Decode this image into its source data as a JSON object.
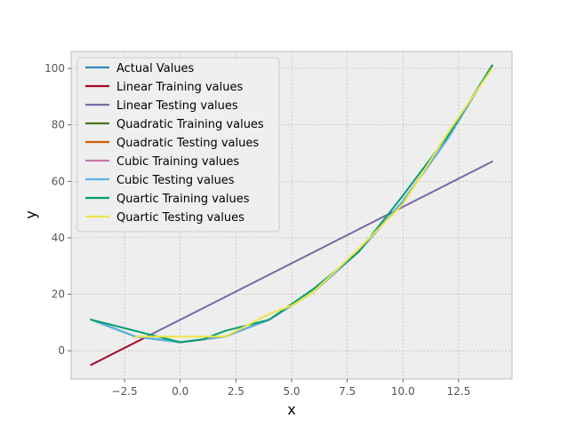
{
  "chart_data": {
    "type": "line",
    "title": "",
    "xlabel": "x",
    "ylabel": "y",
    "xlim": [
      -4.9,
      14.9
    ],
    "ylim": [
      -10,
      106
    ],
    "x_ticks": [
      -2.5,
      0.0,
      2.5,
      5.0,
      7.5,
      10.0,
      12.5
    ],
    "x_tick_labels": [
      "−2.5",
      "0.0",
      "2.5",
      "5.0",
      "7.5",
      "10.0",
      "12.5"
    ],
    "y_ticks": [
      0,
      20,
      40,
      60,
      80,
      100
    ],
    "y_tick_labels": [
      "0",
      "20",
      "40",
      "60",
      "80",
      "100"
    ],
    "grid": true,
    "legend_position": "top-left",
    "background": "#eeeeee",
    "series": [
      {
        "name": "Actual Values",
        "color": "#348abd",
        "points": [
          [
            -4,
            11
          ],
          [
            -2,
            5
          ],
          [
            0,
            3
          ],
          [
            2,
            5
          ],
          [
            4,
            11
          ],
          [
            6,
            21
          ],
          [
            8,
            35
          ],
          [
            10,
            53
          ],
          [
            12,
            75
          ],
          [
            14,
            101
          ]
        ]
      },
      {
        "name": "Linear Training values",
        "color": "#a60628",
        "points": [
          [
            -4,
            -5
          ],
          [
            -1.5,
            5
          ]
        ]
      },
      {
        "name": "Linear Testing values",
        "color": "#7a68a6",
        "points": [
          [
            -1.5,
            5
          ],
          [
            14,
            67
          ]
        ]
      },
      {
        "name": "Quadratic Training values",
        "color": "#467821",
        "points": [
          [
            -4,
            11
          ],
          [
            -2,
            5
          ],
          [
            0,
            3
          ],
          [
            2,
            5
          ],
          [
            4,
            11
          ],
          [
            6,
            21
          ],
          [
            8,
            35
          ],
          [
            10,
            53
          ],
          [
            12,
            75
          ],
          [
            14,
            101
          ]
        ]
      },
      {
        "name": "Quadratic Testing values",
        "color": "#d55e00",
        "points": [
          [
            -4,
            11
          ],
          [
            -2,
            5
          ],
          [
            0,
            3
          ],
          [
            2,
            5
          ],
          [
            4,
            11
          ],
          [
            6,
            21
          ],
          [
            8,
            35
          ],
          [
            10,
            53
          ],
          [
            12,
            75
          ],
          [
            14,
            101
          ]
        ]
      },
      {
        "name": "Cubic Training values",
        "color": "#cc79a7",
        "points": [
          [
            -4,
            11
          ],
          [
            -2,
            5
          ],
          [
            0,
            3
          ],
          [
            2,
            5
          ],
          [
            4,
            11
          ],
          [
            6,
            21
          ],
          [
            8,
            35
          ],
          [
            10,
            53
          ],
          [
            12,
            75
          ],
          [
            14,
            101
          ]
        ]
      },
      {
        "name": "Cubic Testing values",
        "color": "#56b4e9",
        "points": [
          [
            -4,
            11
          ],
          [
            -2,
            5
          ],
          [
            0,
            3
          ],
          [
            2,
            5
          ],
          [
            4,
            11
          ],
          [
            6,
            21
          ],
          [
            8,
            35
          ],
          [
            10,
            53
          ],
          [
            12,
            75
          ],
          [
            14,
            101
          ]
        ]
      },
      {
        "name": "Quartic Training values",
        "color": "#009e73",
        "points": [
          [
            -4,
            11
          ],
          [
            -1,
            5
          ],
          [
            0,
            3
          ],
          [
            1,
            4
          ],
          [
            2,
            7
          ],
          [
            4,
            11
          ],
          [
            6,
            22
          ],
          [
            8,
            35
          ],
          [
            10,
            55
          ],
          [
            12,
            76
          ],
          [
            14,
            101
          ]
        ]
      },
      {
        "name": "Quartic Testing values",
        "color": "#f0e442",
        "points": [
          [
            -2,
            5
          ],
          [
            0,
            5
          ],
          [
            2,
            5
          ],
          [
            3,
            9
          ],
          [
            4,
            13
          ],
          [
            5,
            16
          ],
          [
            6,
            21
          ],
          [
            8,
            36
          ],
          [
            10,
            52
          ],
          [
            12,
            77
          ],
          [
            14,
            100
          ]
        ]
      }
    ]
  }
}
